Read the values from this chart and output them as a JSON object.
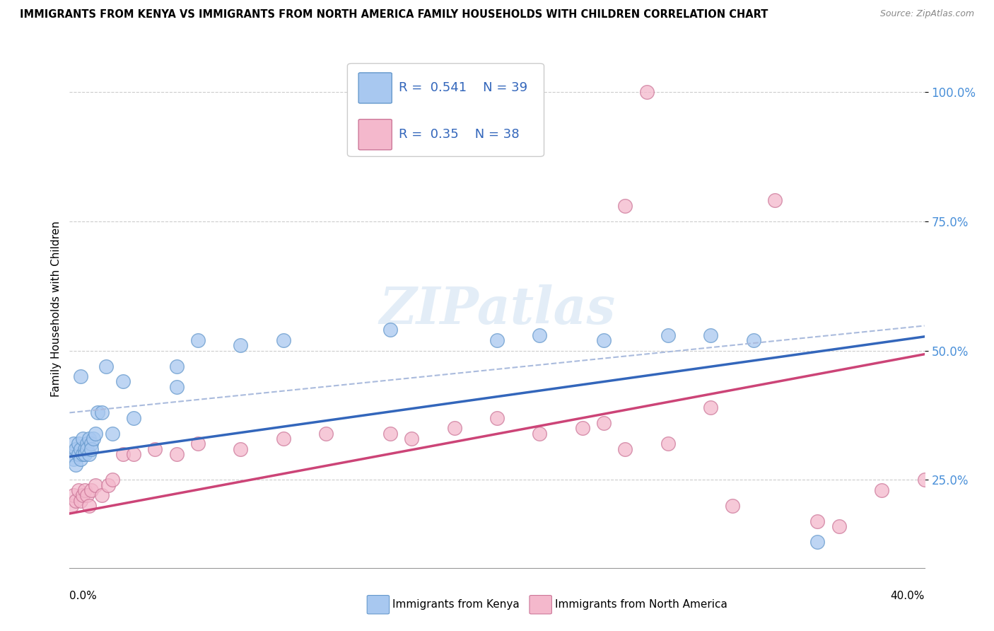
{
  "title": "IMMIGRANTS FROM KENYA VS IMMIGRANTS FROM NORTH AMERICA FAMILY HOUSEHOLDS WITH CHILDREN CORRELATION CHART",
  "source": "Source: ZipAtlas.com",
  "ylabel": "Family Households with Children",
  "ytick_vals": [
    0.25,
    0.5,
    0.75,
    1.0
  ],
  "ytick_labels": [
    "25.0%",
    "50.0%",
    "75.0%",
    "100.0%"
  ],
  "xlim": [
    0.0,
    0.4
  ],
  "ylim": [
    0.08,
    1.08
  ],
  "kenya_color": "#a8c8f0",
  "kenya_edge": "#6699cc",
  "northam_color": "#f4b8cc",
  "northam_edge": "#cc7799",
  "kenya_R": 0.541,
  "kenya_N": 39,
  "northam_R": 0.35,
  "northam_N": 38,
  "kenya_line_color": "#3366bb",
  "northam_line_color": "#cc4477",
  "dashed_line_color": "#aabbdd",
  "watermark_color": "#c8ddf0",
  "kenya_x": [
    0.001,
    0.002,
    0.002,
    0.003,
    0.003,
    0.004,
    0.004,
    0.005,
    0.005,
    0.006,
    0.006,
    0.007,
    0.007,
    0.008,
    0.008,
    0.009,
    0.009,
    0.01,
    0.01,
    0.011,
    0.012,
    0.013,
    0.015,
    0.017,
    0.02,
    0.025,
    0.03,
    0.05,
    0.06,
    0.08,
    0.1,
    0.15,
    0.2,
    0.22,
    0.25,
    0.28,
    0.3,
    0.32,
    0.35
  ],
  "kenya_y": [
    0.3,
    0.29,
    0.32,
    0.31,
    0.28,
    0.3,
    0.32,
    0.29,
    0.31,
    0.3,
    0.33,
    0.31,
    0.3,
    0.32,
    0.31,
    0.3,
    0.33,
    0.32,
    0.31,
    0.33,
    0.34,
    0.38,
    0.38,
    0.47,
    0.34,
    0.44,
    0.37,
    0.43,
    0.52,
    0.51,
    0.52,
    0.54,
    0.52,
    0.53,
    0.52,
    0.53,
    0.53,
    0.52,
    0.13
  ],
  "northam_x": [
    0.001,
    0.002,
    0.003,
    0.004,
    0.005,
    0.006,
    0.007,
    0.008,
    0.009,
    0.01,
    0.012,
    0.015,
    0.018,
    0.02,
    0.025,
    0.03,
    0.04,
    0.05,
    0.06,
    0.08,
    0.1,
    0.12,
    0.15,
    0.16,
    0.18,
    0.2,
    0.22,
    0.24,
    0.25,
    0.26,
    0.28,
    0.3,
    0.31,
    0.33,
    0.35,
    0.36,
    0.38,
    0.4
  ],
  "northam_y": [
    0.2,
    0.22,
    0.21,
    0.23,
    0.21,
    0.22,
    0.23,
    0.22,
    0.2,
    0.23,
    0.24,
    0.22,
    0.24,
    0.25,
    0.3,
    0.3,
    0.31,
    0.3,
    0.32,
    0.31,
    0.33,
    0.34,
    0.34,
    0.33,
    0.35,
    0.37,
    0.34,
    0.35,
    0.36,
    0.31,
    0.32,
    0.39,
    0.2,
    0.79,
    0.17,
    0.16,
    0.23,
    0.25
  ],
  "kenya_line_intercept": 0.295,
  "kenya_line_slope": 0.58,
  "northam_line_intercept": 0.185,
  "northam_line_slope": 0.77,
  "dashed_line_intercept": 0.38,
  "dashed_line_slope": 0.42
}
